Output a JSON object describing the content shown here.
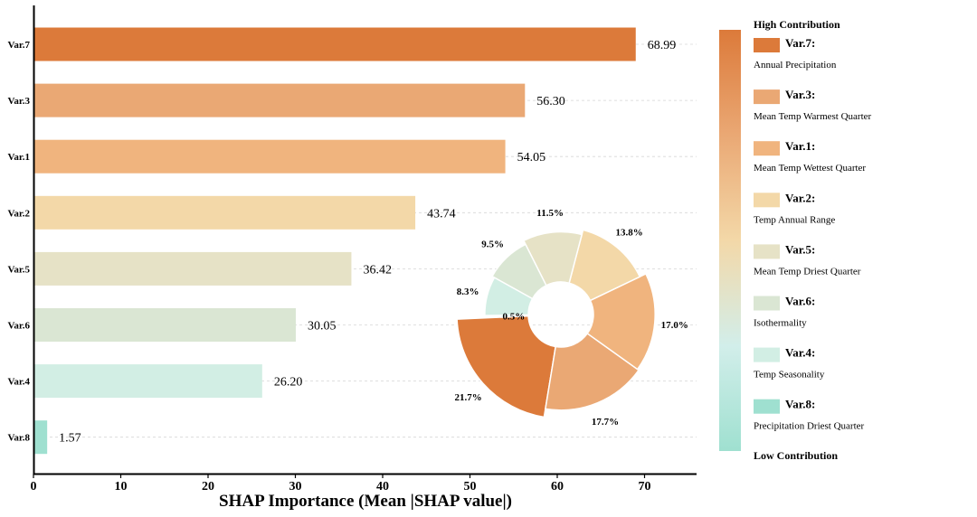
{
  "chart_data": {
    "type": "bar",
    "orientation": "horizontal",
    "categories": [
      "Var.7",
      "Var.3",
      "Var.1",
      "Var.2",
      "Var.5",
      "Var.6",
      "Var.4",
      "Var.8"
    ],
    "values": [
      68.99,
      56.3,
      54.05,
      43.74,
      36.42,
      30.05,
      26.2,
      1.57
    ],
    "value_labels": [
      "68.99",
      "56.30",
      "54.05",
      "43.74",
      "36.42",
      "30.05",
      "26.20",
      "1.57"
    ],
    "colors": [
      "#dc7a3a",
      "#eaa874",
      "#f0b47e",
      "#f3d8a8",
      "#e6e2c6",
      "#dae6d3",
      "#d2eee4",
      "#9fe0d0"
    ],
    "xlabel": "SHAP Importance (Mean |SHAP value|)",
    "xlim": [
      0,
      76
    ],
    "xticks": [
      "0",
      "10",
      "20",
      "30",
      "40",
      "50",
      "60",
      "70"
    ],
    "grid": "dashed horizontal",
    "inset_pie": {
      "type": "donut",
      "slices": [
        {
          "var": "Var.7",
          "value": 21.7,
          "label": "21.7%",
          "color": "#dc7a3a"
        },
        {
          "var": "Var.3",
          "value": 17.7,
          "label": "17.7%",
          "color": "#eaa874"
        },
        {
          "var": "Var.1",
          "value": 17.0,
          "label": "17.0%",
          "color": "#f0b47e"
        },
        {
          "var": "Var.2",
          "value": 13.8,
          "label": "13.8%",
          "color": "#f3d8a8"
        },
        {
          "var": "Var.5",
          "value": 11.5,
          "label": "11.5%",
          "color": "#e6e2c6"
        },
        {
          "var": "Var.6",
          "value": 9.5,
          "label": "9.5%",
          "color": "#dae6d3"
        },
        {
          "var": "Var.4",
          "value": 8.3,
          "label": "8.3%",
          "color": "#d2eee4"
        },
        {
          "var": "Var.8",
          "value": 0.5,
          "label": "0.5%",
          "color": "#9fe0d0"
        }
      ]
    },
    "colorbar": {
      "top_label": "High Contribution",
      "bottom_label": "Low Contribution",
      "stops": [
        "#dc7a3a",
        "#eaa874",
        "#f3d8a8",
        "#d2eeea",
        "#9fe0d0"
      ]
    },
    "legend": [
      {
        "name": "Var.7:",
        "desc": "Annual Precipitation",
        "color": "#dc7a3a"
      },
      {
        "name": "Var.3:",
        "desc": "Mean Temp Warmest Quarter",
        "color": "#eaa874"
      },
      {
        "name": "Var.1:",
        "desc": "Mean Temp Wettest Quarter",
        "color": "#f0b47e"
      },
      {
        "name": "Var.2:",
        "desc": "Temp Annual Range",
        "color": "#f3d8a8"
      },
      {
        "name": "Var.5:",
        "desc": "Mean Temp Driest Quarter",
        "color": "#e6e2c6"
      },
      {
        "name": "Var.6:",
        "desc": "Isothermality",
        "color": "#dae6d3"
      },
      {
        "name": "Var.4:",
        "desc": "Temp Seasonality",
        "color": "#d2eee4"
      },
      {
        "name": "Var.8:",
        "desc": "Precipitation Driest Quarter",
        "color": "#9fe0d0"
      }
    ]
  }
}
